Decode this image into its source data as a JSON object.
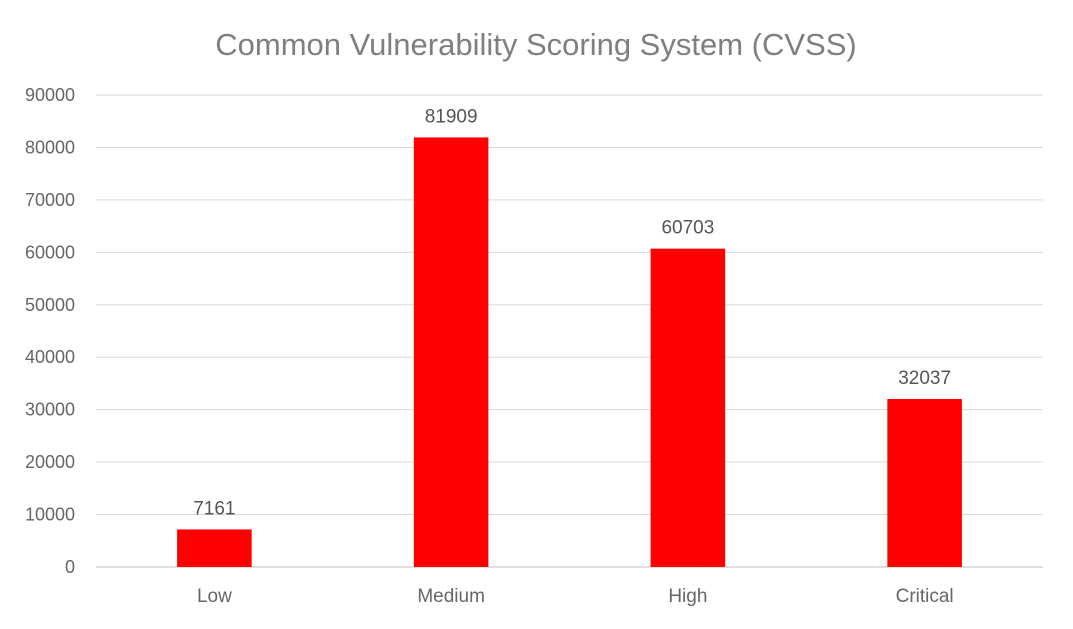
{
  "chart_data": {
    "type": "bar",
    "title": "Common Vulnerability Scoring System (CVSS)",
    "categories": [
      "Low",
      "Medium",
      "High",
      "Critical"
    ],
    "values": [
      7161,
      81909,
      60703,
      32037
    ],
    "ylim": [
      0,
      90000
    ],
    "yticks": [
      0,
      10000,
      20000,
      30000,
      40000,
      50000,
      60000,
      70000,
      80000,
      90000
    ],
    "grid": true,
    "legend": "none",
    "bar_color": "#ff0000"
  }
}
